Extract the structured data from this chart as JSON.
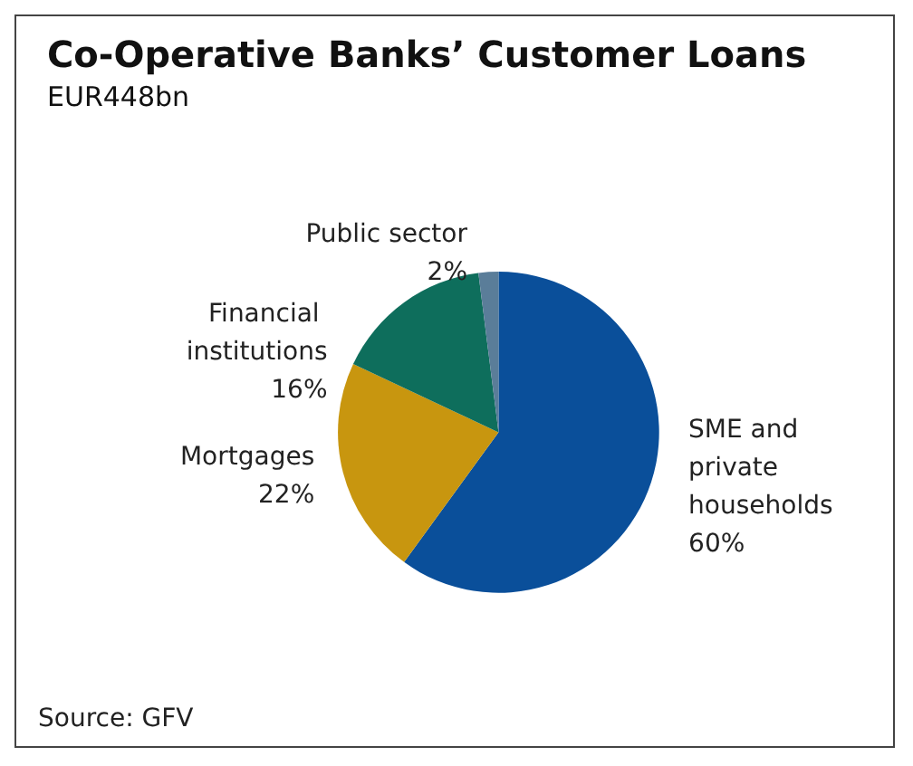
{
  "chart_data": {
    "type": "pie",
    "title": "Co-Operative Banks’ Customer Loans",
    "subtitle": "EUR448bn",
    "categories": [
      "SME and private households",
      "Mortgages",
      "Financial institutions",
      "Public sector"
    ],
    "values": [
      60,
      22,
      16,
      2
    ],
    "colors": [
      "#0a4f9a",
      "#c8960f",
      "#0e6e5c",
      "#5a7d99"
    ],
    "annotations": [
      "Source: GFV"
    ],
    "legend": false,
    "value_labels": [
      "60%",
      "22%",
      "16%",
      "2%"
    ]
  }
}
